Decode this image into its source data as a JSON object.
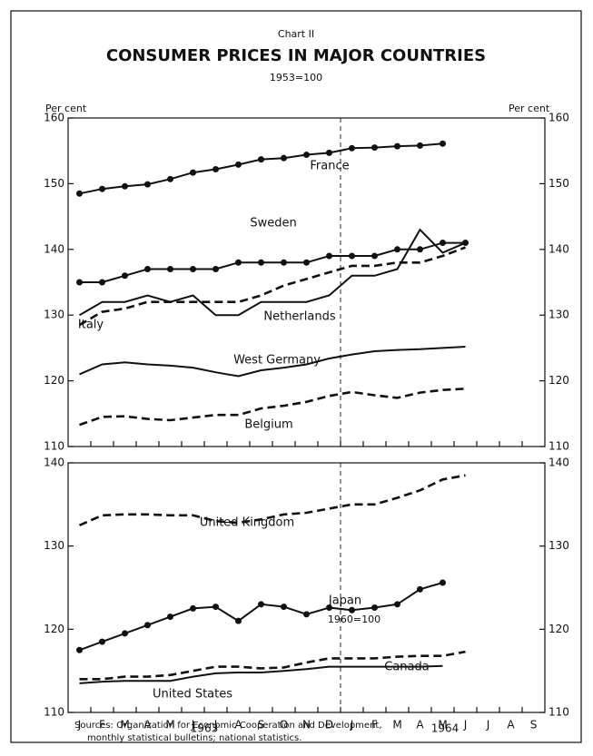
{
  "header": {
    "label": "Chart II",
    "title": "CONSUMER PRICES IN MAJOR COUNTRIES",
    "subtitle": "1953=100"
  },
  "sources": [
    "Sources: Organization for Economic Cooperation and Development,",
    "monthly statistical bulletins; national statistics."
  ],
  "chart_data": [
    {
      "type": "line",
      "y_label": "Per cent",
      "ylim": [
        110,
        160
      ],
      "yticks": [
        110,
        120,
        130,
        140,
        150,
        160
      ],
      "series": [
        {
          "name": "France",
          "color": "#111",
          "style": "dots",
          "values": [
            148.5,
            149.2,
            149.6,
            149.9,
            150.7,
            151.7,
            152.2,
            152.9,
            153.7,
            153.9,
            154.4,
            154.7,
            155.4,
            155.5,
            155.7,
            155.8,
            156.1,
            null,
            null,
            null,
            null
          ]
        },
        {
          "name": "Sweden",
          "color": "#111",
          "style": "dots",
          "values": [
            135,
            135,
            136,
            137,
            137,
            137,
            137,
            138,
            138,
            138,
            138,
            139,
            139,
            139,
            140,
            140,
            141,
            141,
            null,
            null,
            null
          ]
        },
        {
          "name": "Italy",
          "color": "#111",
          "style": "dashed",
          "values": [
            128.5,
            130.5,
            131,
            132,
            132,
            132,
            132,
            132,
            133,
            134.5,
            135.5,
            136.5,
            137.5,
            137.5,
            138,
            138,
            139,
            140.3,
            null,
            null,
            null
          ]
        },
        {
          "name": "Netherlands",
          "color": "#111",
          "style": "solid",
          "values": [
            130,
            132,
            132,
            133,
            132,
            133,
            130,
            130,
            132,
            132,
            132,
            133,
            136,
            136,
            137,
            143,
            139.5,
            141,
            null,
            null,
            null
          ]
        },
        {
          "name": "West Germany",
          "color": "#111",
          "style": "solid",
          "values": [
            121,
            122.5,
            122.8,
            122.5,
            122.3,
            122,
            121.3,
            120.7,
            121.6,
            122,
            122.5,
            123.4,
            124,
            124.5,
            124.7,
            124.8,
            125,
            125.2,
            null,
            null,
            null
          ]
        },
        {
          "name": "Belgium",
          "color": "#111",
          "style": "dashed",
          "values": [
            113.3,
            114.5,
            114.6,
            114.2,
            114,
            114.4,
            114.8,
            114.8,
            115.8,
            116.2,
            116.8,
            117.7,
            118.3,
            117.8,
            117.4,
            118.2,
            118.6,
            118.8,
            null,
            null,
            null
          ]
        }
      ]
    },
    {
      "type": "line",
      "ylim": [
        110,
        140
      ],
      "yticks": [
        110,
        120,
        130,
        140
      ],
      "categories": [
        "J",
        "F",
        "M",
        "A",
        "M",
        "J",
        "J",
        "A",
        "S",
        "O",
        "N",
        "D",
        "J",
        "F",
        "M",
        "A",
        "M",
        "J",
        "J",
        "A",
        "S"
      ],
      "years": [
        "1963",
        "1964"
      ],
      "series": [
        {
          "name": "United Kingdom",
          "color": "#111",
          "style": "dashed",
          "values": [
            132.5,
            133.7,
            133.8,
            133.8,
            133.7,
            133.7,
            133,
            132.8,
            133.2,
            133.8,
            134,
            134.5,
            135,
            135,
            135.8,
            136.7,
            138,
            138.5,
            null,
            null,
            null
          ]
        },
        {
          "name": "Japan",
          "note": "1960=100",
          "color": "#111",
          "style": "dots",
          "values": [
            117.5,
            118.5,
            119.5,
            120.5,
            121.5,
            122.5,
            122.7,
            121,
            123,
            122.7,
            121.8,
            122.6,
            122.3,
            122.6,
            123,
            124.8,
            125.6,
            null,
            null,
            null,
            null
          ]
        },
        {
          "name": "Canada",
          "color": "#111",
          "style": "dashed",
          "values": [
            114,
            114,
            114.3,
            114.3,
            114.5,
            115,
            115.5,
            115.5,
            115.3,
            115.4,
            116,
            116.5,
            116.5,
            116.5,
            116.7,
            116.8,
            116.8,
            117.3,
            null,
            null,
            null
          ]
        },
        {
          "name": "United States",
          "color": "#111",
          "style": "solid",
          "values": [
            113.5,
            113.7,
            113.8,
            113.8,
            113.8,
            114.3,
            114.7,
            114.8,
            114.8,
            115,
            115.2,
            115.5,
            115.5,
            115.5,
            115.5,
            115.5,
            115.6,
            null,
            null,
            null,
            null
          ]
        }
      ]
    }
  ]
}
